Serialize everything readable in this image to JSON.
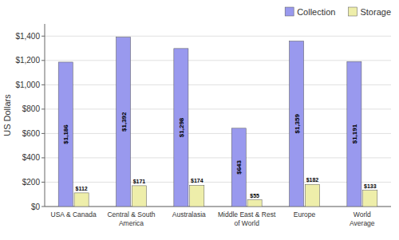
{
  "chart_data": {
    "type": "bar",
    "categories": [
      "USA & Canada",
      "Central & South\nAmerica",
      "Australasia",
      "Middle East & Rest\nof World",
      "Europe",
      "World\nAverage"
    ],
    "series": [
      {
        "name": "Collection",
        "color": "#9999ee",
        "values": [
          1186,
          1392,
          1298,
          643,
          1359,
          1191
        ],
        "value_labels": [
          "$1,186",
          "$1,392",
          "$1,298",
          "$643",
          "$1,359",
          "$1,191"
        ]
      },
      {
        "name": "Storage",
        "color": "#eeeeaa",
        "values": [
          112,
          171,
          174,
          55,
          182,
          133
        ],
        "value_labels": [
          "$112",
          "$171",
          "$174",
          "$55",
          "$182",
          "$133"
        ]
      }
    ],
    "ylabel": "US Dollars",
    "ylim": [
      0,
      1500
    ],
    "yticks": [
      {
        "value": 0,
        "label": "$0"
      },
      {
        "value": 200,
        "label": "$200"
      },
      {
        "value": 400,
        "label": "$400"
      },
      {
        "value": 600,
        "label": "$600"
      },
      {
        "value": 800,
        "label": "$800"
      },
      {
        "value": 1000,
        "label": "$1,000"
      },
      {
        "value": 1200,
        "label": "$1,200"
      },
      {
        "value": 1400,
        "label": "$1,400"
      }
    ],
    "grid": true,
    "legend": "top",
    "data_labels": true
  }
}
